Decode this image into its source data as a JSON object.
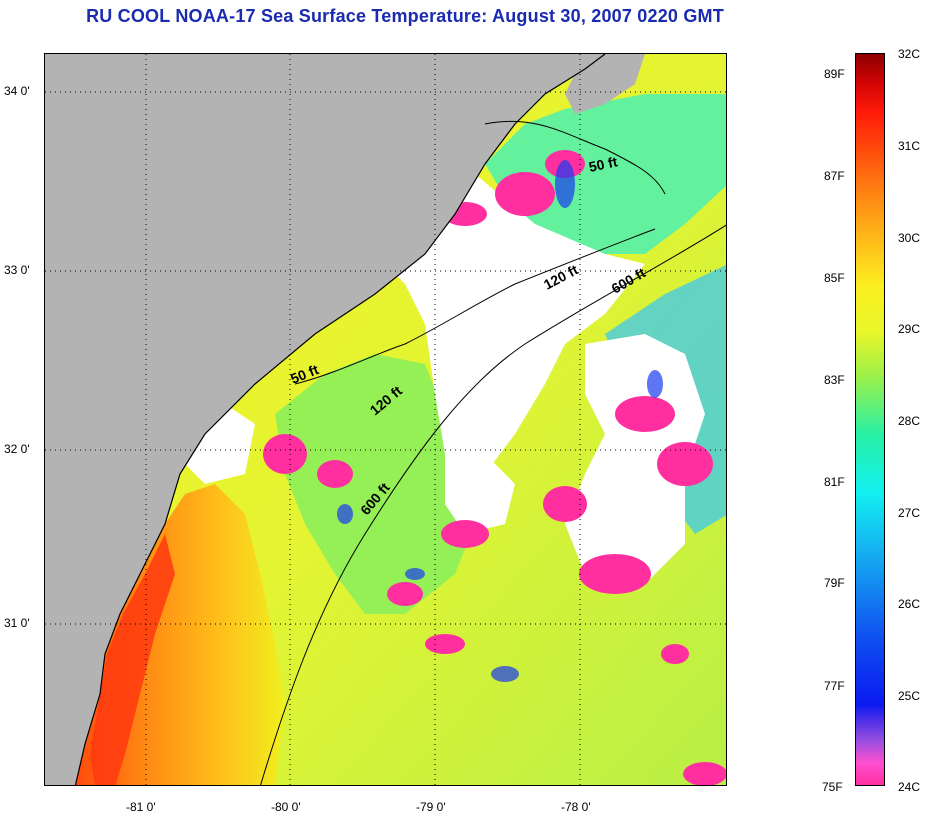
{
  "title": "RU COOL  NOAA-17  Sea Surface Temperature:  August 30, 2007 0220 GMT",
  "map": {
    "lon_labels": [
      "-81 0'",
      "-80 0'",
      "-79 0'",
      "-78 0'"
    ],
    "lat_labels": [
      "34 0'",
      "33 0'",
      "32 0'",
      "31 0'"
    ],
    "contours": {
      "c50_a": "50 ft",
      "c50_b": "50 ft",
      "c120_a": "120 ft",
      "c120_b": "120 ft",
      "c600_a": "600 ft",
      "c600_b": "600 ft"
    }
  },
  "colorbar": {
    "celsius": [
      "32C",
      "31C",
      "30C",
      "29C",
      "28C",
      "27C",
      "26C",
      "25C",
      "24C"
    ],
    "fahrenheit": [
      "89F",
      "87F",
      "85F",
      "83F",
      "81F",
      "79F",
      "77F",
      "75F"
    ]
  },
  "colors": {
    "title": "#1a2bb0",
    "land": "#b3b3b3",
    "cloud": "#ffffff",
    "cold": "#ff2fa0",
    "warm": "#ff4a0c"
  }
}
